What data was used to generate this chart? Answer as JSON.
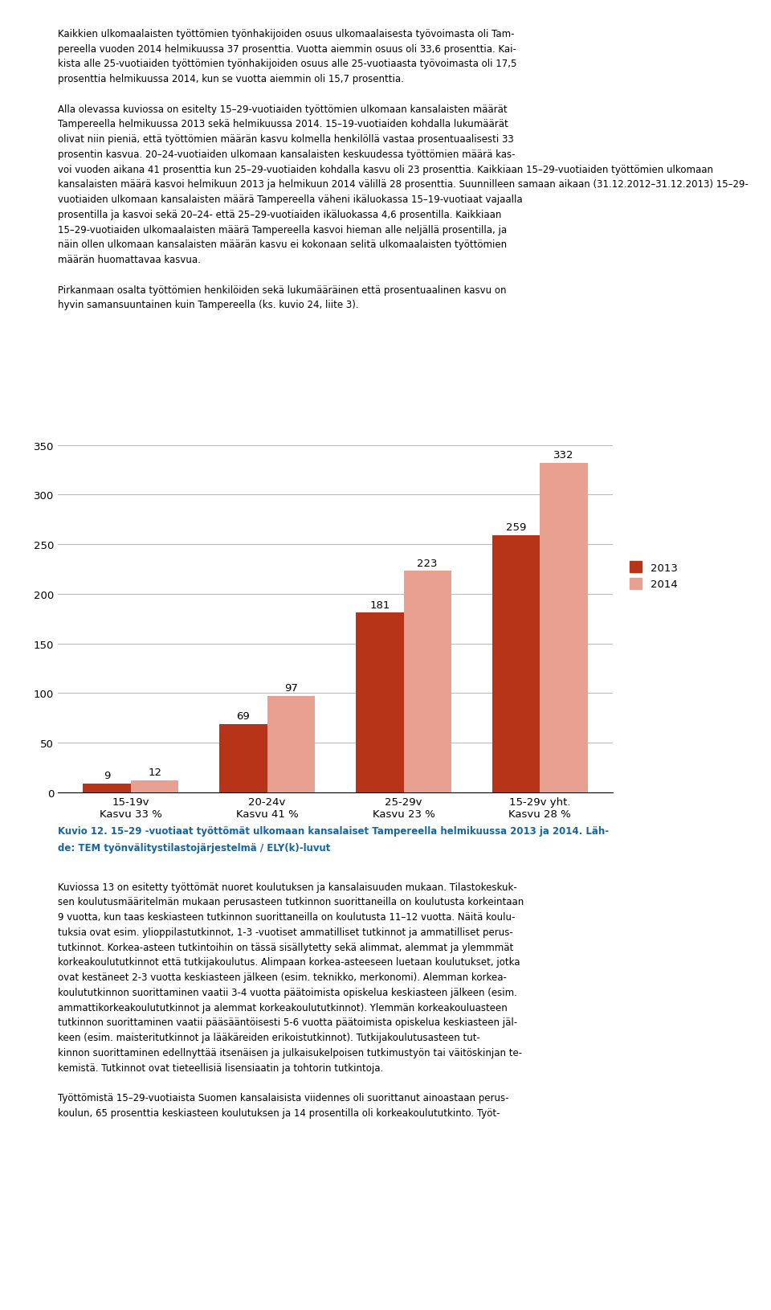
{
  "categories": [
    "15-19v\nKasvu 33 %",
    "20-24v\nKasvu 41 %",
    "25-29v\nKasvu 23 %",
    "15-29v yht.\nKasvu 28 %"
  ],
  "values_2013": [
    9,
    69,
    181,
    259
  ],
  "values_2014": [
    12,
    97,
    223,
    332
  ],
  "color_2013": "#b83418",
  "color_2014": "#e8a090",
  "legend_2013": "2013",
  "legend_2014": "2014",
  "ylim": [
    0,
    350
  ],
  "yticks": [
    0,
    50,
    100,
    150,
    200,
    250,
    300,
    350
  ],
  "bar_width": 0.35,
  "tick_fontsize": 9.5,
  "legend_fontsize": 9.5,
  "value_fontsize": 9.5,
  "figure_width": 9.6,
  "figure_height": 16.31,
  "background_color": "#ffffff",
  "grid_color": "#bbbbbb",
  "caption_line1": "Kuvio 12. 15–29 -vuotiaat työttömät ulkomaan kansalaiset Tampereella helmikuussa 2013 ja 2014. Läh-",
  "caption_line2": "de: TEM työnvälitystilastojärjestelmä / ELY(k)-luvut",
  "text_above": [
    "Kaikkien ulkomaalaisten työttömien työnhakijoiden osuus ulkomaalaisesta työvoimasta oli Tam-",
    "pereella vuoden 2014 helmikuussa 37 prosenttia. Vuotta aiemmin osuus oli 33,6 prosenttia. Kai-",
    "kista alle 25-vuotiaiden työttömien työnhakijoiden osuus alle 25-vuotiaasta työvoimasta oli 17,5",
    "prosenttia helmikuussa 2014, kun se vuotta aiemmin oli 15,7 prosenttia.",
    "",
    "Alla olevassa kuviossa on esitelty 15–29-vuotiaiden työttömien ulkomaan kansalaisten määrät",
    "Tampereella helmikuussa 2013 sekä helmikuussa 2014. 15–19-vuotiaiden kohdalla lukumäärät",
    "olivat niin pieniä, että työttömien määrän kasvu kolmella henkilöllä vastaa prosentuaalisesti 33",
    "prosentin kasvua. 20–24-vuotiaiden ulkomaan kansalaisten keskuudessa työttömien määrä kas-",
    "voi vuoden aikana 41 prosenttia kun 25–29-vuotiaiden kohdalla kasvu oli 23 prosenttia. Kaikkiaan 15–29-vuotiaiden työttömien ulkomaan",
    "kansalaisten määrä kasvoi helmikuun 2013 ja helmikuun 2014 välillä 28 prosenttia. Suunnilleen samaan aikaan (31.12.2012–31.12.2013) 15–29-",
    "vuotiaiden ulkomaan kansalaisten määrä Tampereella väheni ikäluokassa 15–19-vuotiaat vajaalla",
    "prosentilla ja kasvoi sekä 20–24- että 25–29-vuotiaiden ikäluokassa 4,6 prosentilla. Kaikkiaan",
    "15–29-vuotiaiden ulkomaalaisten määrä Tampereella kasvoi hieman alle neljällä prosentilla, ja",
    "näin ollen ulkomaan kansalaisten määrän kasvu ei kokonaan selitä ulkomaalaisten työttömien",
    "määrän huomattavaa kasvua.",
    "",
    "Pirkanmaan osalta työttömien henkilöiden sekä lukumääräinen että prosentuaalinen kasvu on",
    "hyvin samansuuntainen kuin Tampereella (ks. kuvio 24, liite 3)."
  ],
  "text_below": [
    "Kuviossa 13 on esitetty työttömät nuoret koulutuksen ja kansalaisuuden mukaan. Tilastokeskuk-",
    "sen koulutusmääritelmän mukaan perusasteen tutkinnon suorittaneilla on koulutusta korkeintaan",
    "9 vuotta, kun taas keskiasteen tutkinnon suorittaneilla on koulutusta 11–12 vuotta. Näitä koulu-",
    "tuksia ovat esim. ylioppilastutkinnot, 1-3 -vuotiset ammatilliset tutkinnot ja ammatilliset perus-",
    "tutkinnot. Korkea-asteen tutkintoihin on tässä sisällytetty sekä alimmat, alemmat ja ylemmmät",
    "korkeakoulututkinnot että tutkijakoulutus. Alimpaan korkea-asteeseen luetaan koulutukset, jotka",
    "ovat kestäneet 2-3 vuotta keskiasteen jälkeen (esim. teknikko, merkonomi). Alemman korkea-",
    "koulututkinnon suorittaminen vaatii 3-4 vuotta päätoimista opiskelua keskiasteen jälkeen (esim.",
    "ammattikorkeakoulututkinnot ja alemmat korkeakoulututkinnot). Ylemmän korkeakouluasteen",
    "tutkinnon suorittaminen vaatii pääsääntöisesti 5-6 vuotta päätoimista opiskelua keskiasteen jäl-",
    "keen (esim. maisteritutkinnot ja lääkäreiden erikoistutkinnot). Tutkijakoulutusasteen tut-",
    "kinnon suorittaminen edellnyttää itsenäisen ja julkaisukelpoisen tutkimustyön tai väitöskinjan te-",
    "kemistä. Tutkinnot ovat tieteellisiä lisensiaatin ja tohtorin tutkintoja.",
    "",
    "Työttömistä 15–29-vuotiaista Suomen kansalaisista viidennes oli suorittanut ainoastaan perus-",
    "koulun, 65 prosenttia keskiasteen koulutuksen ja 14 prosentilla oli korkeakoulututkinto. Työt-"
  ]
}
